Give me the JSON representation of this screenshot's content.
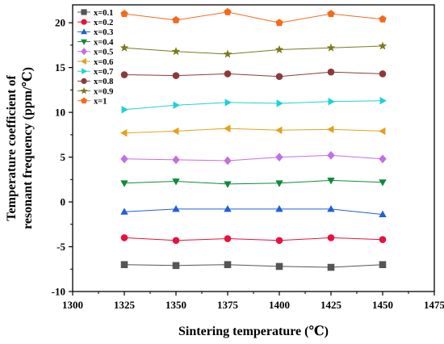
{
  "chart_data": {
    "type": "line",
    "xlabel": "Sintering temperature (℃)",
    "ylabel_lines": [
      "Temperature coefficient of",
      "resonant frequency (ppm/℃)"
    ],
    "xlim": [
      1300,
      1475
    ],
    "ylim": [
      -10,
      22
    ],
    "x_ticks": [
      1300,
      1325,
      1350,
      1375,
      1400,
      1425,
      1450,
      1475
    ],
    "y_ticks": [
      -10,
      -5,
      0,
      5,
      10,
      15,
      20
    ],
    "x": [
      1325,
      1350,
      1375,
      1400,
      1425,
      1450
    ],
    "legend_position": "top-left",
    "grid": false,
    "series": [
      {
        "name": "x=0.1",
        "color": "#555555",
        "marker": "square",
        "values": [
          -7.0,
          -7.1,
          -7.0,
          -7.2,
          -7.3,
          -7.0
        ]
      },
      {
        "name": "x=0.2",
        "color": "#e8103c",
        "marker": "circle",
        "values": [
          -4.0,
          -4.3,
          -4.1,
          -4.3,
          -4.0,
          -4.2
        ]
      },
      {
        "name": "x=0.3",
        "color": "#1f5fd9",
        "marker": "triangle-up",
        "values": [
          -1.1,
          -0.8,
          -0.8,
          -0.8,
          -0.8,
          -1.4
        ]
      },
      {
        "name": "x=0.4",
        "color": "#0f8a3c",
        "marker": "triangle-down",
        "values": [
          2.1,
          2.3,
          2.0,
          2.1,
          2.4,
          2.2
        ]
      },
      {
        "name": "x=0.5",
        "color": "#c36ee6",
        "marker": "diamond",
        "values": [
          4.8,
          4.7,
          4.6,
          5.0,
          5.2,
          4.8
        ]
      },
      {
        "name": "x=0.6",
        "color": "#e0a21a",
        "marker": "triangle-left",
        "values": [
          7.7,
          7.9,
          8.2,
          8.0,
          8.1,
          7.9
        ]
      },
      {
        "name": "x=0.7",
        "color": "#20d0d8",
        "marker": "triangle-right",
        "values": [
          10.3,
          10.8,
          11.1,
          11.0,
          11.2,
          11.3
        ]
      },
      {
        "name": "x=0.8",
        "color": "#8a3a3a",
        "marker": "circle",
        "values": [
          14.2,
          14.1,
          14.3,
          14.0,
          14.5,
          14.3
        ]
      },
      {
        "name": "x=0.9",
        "color": "#7a7a1e",
        "marker": "star",
        "values": [
          17.2,
          16.8,
          16.5,
          17.0,
          17.2,
          17.4
        ]
      },
      {
        "name": "x=1",
        "color": "#f26b1d",
        "marker": "pentagon",
        "values": [
          21.0,
          20.3,
          21.2,
          20.0,
          21.0,
          20.4
        ]
      }
    ]
  }
}
